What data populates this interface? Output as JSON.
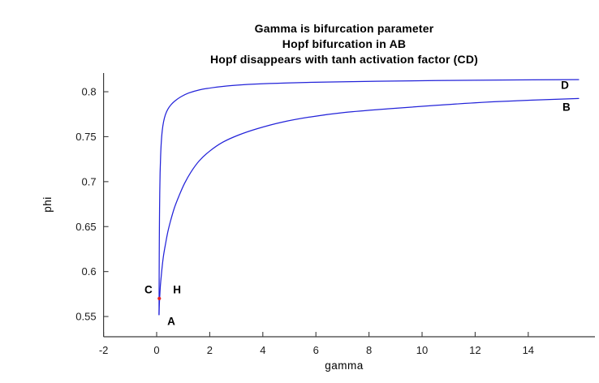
{
  "figure": {
    "background": "#ffffff"
  },
  "chart_data": {
    "type": "line",
    "title_lines": [
      "Gamma is bifurcation parameter",
      "Hopf bifurcation in AB",
      "Hopf disappears with tanh activation factor (CD)"
    ],
    "xlabel": "gamma",
    "ylabel": "phi",
    "xlim": [
      -2,
      16.513
    ],
    "ylim": [
      0.5275,
      0.8208
    ],
    "xticks": [
      -2,
      0,
      2,
      4,
      6,
      8,
      10,
      12,
      14
    ],
    "xtick_labels": [
      "-2",
      "0",
      "2",
      "4",
      "6",
      "8",
      "10",
      "12",
      "14"
    ],
    "yticks": [
      0.55,
      0.6,
      0.65,
      0.7,
      0.75,
      0.8
    ],
    "ytick_labels": [
      "0.55",
      "0.6",
      "0.65",
      "0.7",
      "0.75",
      "0.8"
    ],
    "grid": false,
    "box": false,
    "axis_color": "#3c3c3c",
    "line_color": "#2323d9",
    "series": [
      {
        "name": "branch-AB",
        "description": "Equilibrium branch from A to B (with Hopf bifurcation)",
        "color": "#2323d9",
        "points": [
          [
            0.09,
            0.552
          ],
          [
            0.095,
            0.558
          ],
          [
            0.105,
            0.566
          ],
          [
            0.12,
            0.574
          ],
          [
            0.14,
            0.584
          ],
          [
            0.17,
            0.594
          ],
          [
            0.21,
            0.606
          ],
          [
            0.26,
            0.618
          ],
          [
            0.33,
            0.63
          ],
          [
            0.42,
            0.644
          ],
          [
            0.53,
            0.657
          ],
          [
            0.67,
            0.671
          ],
          [
            0.84,
            0.684
          ],
          [
            1.05,
            0.698
          ],
          [
            1.3,
            0.711
          ],
          [
            1.6,
            0.723
          ],
          [
            2.0,
            0.734
          ],
          [
            2.5,
            0.744
          ],
          [
            3.1,
            0.752
          ],
          [
            3.8,
            0.759
          ],
          [
            4.7,
            0.766
          ],
          [
            5.8,
            0.772
          ],
          [
            7.1,
            0.777
          ],
          [
            8.7,
            0.781
          ],
          [
            10.6,
            0.785
          ],
          [
            12.8,
            0.789
          ],
          [
            15.9,
            0.7925
          ]
        ]
      },
      {
        "name": "branch-CD",
        "description": "Equilibrium branch from C to D (tanh activation, no Hopf)",
        "color": "#2323d9",
        "points": [
          [
            0.09,
            0.552
          ],
          [
            0.092,
            0.575
          ],
          [
            0.095,
            0.6
          ],
          [
            0.1,
            0.632
          ],
          [
            0.107,
            0.66
          ],
          [
            0.117,
            0.688
          ],
          [
            0.13,
            0.71
          ],
          [
            0.15,
            0.729
          ],
          [
            0.175,
            0.744
          ],
          [
            0.21,
            0.7565
          ],
          [
            0.26,
            0.7665
          ],
          [
            0.33,
            0.7745
          ],
          [
            0.42,
            0.7805
          ],
          [
            0.54,
            0.7855
          ],
          [
            0.7,
            0.79
          ],
          [
            0.92,
            0.7945
          ],
          [
            1.2,
            0.7985
          ],
          [
            1.6,
            0.802
          ],
          [
            2.1,
            0.8045
          ],
          [
            2.8,
            0.8068
          ],
          [
            3.7,
            0.8085
          ],
          [
            4.9,
            0.8098
          ],
          [
            6.4,
            0.8108
          ],
          [
            8.3,
            0.8117
          ],
          [
            10.5,
            0.8124
          ],
          [
            13.0,
            0.813
          ],
          [
            15.9,
            0.8135
          ]
        ]
      }
    ],
    "markers": [
      {
        "name": "hopf-point",
        "label": "H",
        "x": 0.1,
        "y": 0.57,
        "color": "#e52222",
        "shape": "dot"
      }
    ],
    "annotations": [
      {
        "text": "A",
        "x": 0.55,
        "y": 0.5446
      },
      {
        "text": "B",
        "x": 15.44,
        "y": 0.7829
      },
      {
        "text": "C",
        "x": -0.31,
        "y": 0.5798
      },
      {
        "text": "D",
        "x": 15.38,
        "y": 0.8072
      },
      {
        "text": "H",
        "x": 0.77,
        "y": 0.5798
      }
    ]
  }
}
